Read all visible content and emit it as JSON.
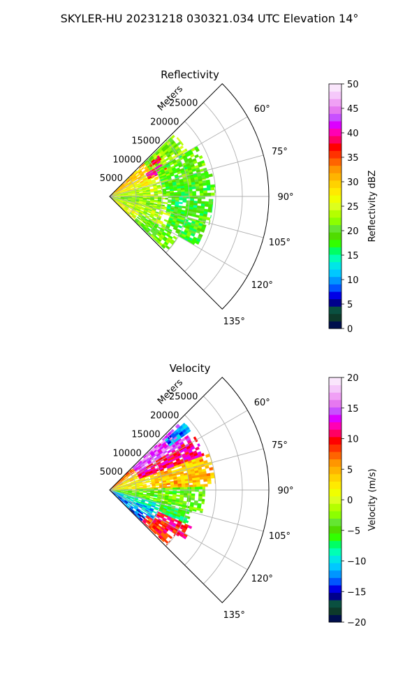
{
  "figure": {
    "suptitle": "SKYLER-HU  20231218  030321.034 UTC Elevation 14°"
  },
  "chart_data": [
    {
      "type": "heatmap",
      "subtype": "polar-wedge-radar",
      "title": "Reflectivity",
      "radial_label": "Meters",
      "radial_ticks": [
        "5000",
        "10000",
        "15000",
        "20000",
        "25000"
      ],
      "radial_tick_values": [
        5000,
        10000,
        15000,
        20000,
        25000
      ],
      "r_max": 30000,
      "theta_ticks": [
        "60°",
        "75°",
        "90°",
        "105°",
        "120°",
        "135°"
      ],
      "theta_tick_values": [
        60,
        75,
        90,
        105,
        120,
        135
      ],
      "theta_range": [
        45,
        135
      ],
      "colorbar": {
        "label": "Reflectivity dBZ",
        "range": [
          0,
          50
        ],
        "ticks": [
          "0",
          "5",
          "10",
          "15",
          "20",
          "25",
          "30",
          "35",
          "40",
          "45",
          "50"
        ],
        "tick_values": [
          0,
          5,
          10,
          15,
          20,
          25,
          30,
          35,
          40,
          45,
          50
        ],
        "colors": [
          "#000f4d",
          "#0d3a2a",
          "#0a5040",
          "#00008c",
          "#0000e6",
          "#0055ff",
          "#0096ff",
          "#00c8ff",
          "#00e6e6",
          "#00ffb4",
          "#00ff64",
          "#32ff00",
          "#50dc00",
          "#64e632",
          "#8cff00",
          "#b4ff00",
          "#dcff1e",
          "#f0ff00",
          "#ffea00",
          "#ffd200",
          "#ffb400",
          "#ff9600",
          "#ff6400",
          "#ff3200",
          "#ff0000",
          "#ff0064",
          "#ff00b4",
          "#dc00ff",
          "#c850ff",
          "#e678f0",
          "#f0a0f5",
          "#f5c8fa",
          "#fae6fc"
        ]
      },
      "fields": [
        {
          "theta": [
            46,
            60
          ],
          "r": [
            0,
            9000
          ],
          "value": 30
        },
        {
          "theta": [
            46,
            60
          ],
          "r": [
            9000,
            17000
          ],
          "value": 22
        },
        {
          "theta": [
            50,
            56
          ],
          "r": [
            9500,
            12000
          ],
          "value": 36
        },
        {
          "theta": [
            60,
            74
          ],
          "r": [
            0,
            10000
          ],
          "value": 27
        },
        {
          "theta": [
            58,
            66
          ],
          "r": [
            8000,
            12000
          ],
          "value": 38
        },
        {
          "theta": [
            60,
            80
          ],
          "r": [
            10000,
            19000
          ],
          "value": 20
        },
        {
          "theta": [
            74,
            90
          ],
          "r": [
            0,
            10000
          ],
          "value": 24
        },
        {
          "theta": [
            76,
            90
          ],
          "r": [
            10000,
            20000
          ],
          "value": 19
        },
        {
          "theta": [
            90,
            105
          ],
          "r": [
            0,
            11000
          ],
          "value": 22
        },
        {
          "theta": [
            90,
            106
          ],
          "r": [
            11000,
            19500
          ],
          "value": 18
        },
        {
          "theta": [
            105,
            120
          ],
          "r": [
            0,
            12000
          ],
          "value": 24
        },
        {
          "theta": [
            105,
            120
          ],
          "r": [
            12000,
            19000
          ],
          "value": 19
        },
        {
          "theta": [
            120,
            134
          ],
          "r": [
            0,
            6500
          ],
          "value": 26
        },
        {
          "theta": [
            120,
            134
          ],
          "r": [
            6500,
            15000
          ],
          "value": 20
        }
      ]
    },
    {
      "type": "heatmap",
      "subtype": "polar-wedge-radar",
      "title": "Velocity",
      "radial_label": "Meters",
      "radial_ticks": [
        "5000",
        "10000",
        "15000",
        "20000",
        "25000"
      ],
      "radial_tick_values": [
        5000,
        10000,
        15000,
        20000,
        25000
      ],
      "r_max": 30000,
      "theta_ticks": [
        "60°",
        "75°",
        "90°",
        "105°",
        "120°",
        "135°"
      ],
      "theta_tick_values": [
        60,
        75,
        90,
        105,
        120,
        135
      ],
      "theta_range": [
        45,
        135
      ],
      "colorbar": {
        "label": "Velocity (m/s)",
        "range": [
          -20,
          20
        ],
        "ticks": [
          "−20",
          "−15",
          "−10",
          "−5",
          "0",
          "5",
          "10",
          "15",
          "20"
        ],
        "tick_values": [
          -20,
          -15,
          -10,
          -5,
          0,
          5,
          10,
          15,
          20
        ],
        "colors": [
          "#000f4d",
          "#0d3a2a",
          "#0a5040",
          "#00008c",
          "#0000e6",
          "#0055ff",
          "#0096ff",
          "#00c8ff",
          "#00e6e6",
          "#00ffb4",
          "#00ff64",
          "#32ff00",
          "#50dc00",
          "#64e632",
          "#8cff00",
          "#b4ff00",
          "#dcff1e",
          "#f0ff00",
          "#ffea00",
          "#ffd200",
          "#ffb400",
          "#ff9600",
          "#ff6400",
          "#ff3200",
          "#ff0000",
          "#ff0064",
          "#ff00b4",
          "#dc00ff",
          "#c850ff",
          "#e678f0",
          "#f0a0f5",
          "#f5c8fa",
          "#fae6fc"
        ]
      },
      "fields": [
        {
          "theta": [
            46,
            56
          ],
          "r": [
            0,
            6000
          ],
          "value": 7
        },
        {
          "theta": [
            46,
            58
          ],
          "r": [
            6000,
            18000
          ],
          "value": 15
        },
        {
          "theta": [
            48,
            54
          ],
          "r": [
            14000,
            19000
          ],
          "value": -12
        },
        {
          "theta": [
            58,
            68
          ],
          "r": [
            0,
            6000
          ],
          "value": 3
        },
        {
          "theta": [
            58,
            70
          ],
          "r": [
            6000,
            19000
          ],
          "value": 11
        },
        {
          "theta": [
            70,
            88
          ],
          "r": [
            0,
            8000
          ],
          "value": 2
        },
        {
          "theta": [
            70,
            88
          ],
          "r": [
            8000,
            20000
          ],
          "value": 4
        },
        {
          "theta": [
            88,
            104
          ],
          "r": [
            0,
            18000
          ],
          "value": -4
        },
        {
          "theta": [
            104,
            114
          ],
          "r": [
            0,
            10000
          ],
          "value": -9
        },
        {
          "theta": [
            104,
            114
          ],
          "r": [
            10000,
            16000
          ],
          "value": -6
        },
        {
          "theta": [
            114,
            124
          ],
          "r": [
            0,
            10000
          ],
          "value": -11
        },
        {
          "theta": [
            114,
            124
          ],
          "r": [
            10000,
            17000
          ],
          "value": 10
        },
        {
          "theta": [
            124,
            134
          ],
          "r": [
            0,
            8500
          ],
          "value": -13
        },
        {
          "theta": [
            124,
            134
          ],
          "r": [
            8500,
            15000
          ],
          "value": 9
        }
      ]
    }
  ]
}
